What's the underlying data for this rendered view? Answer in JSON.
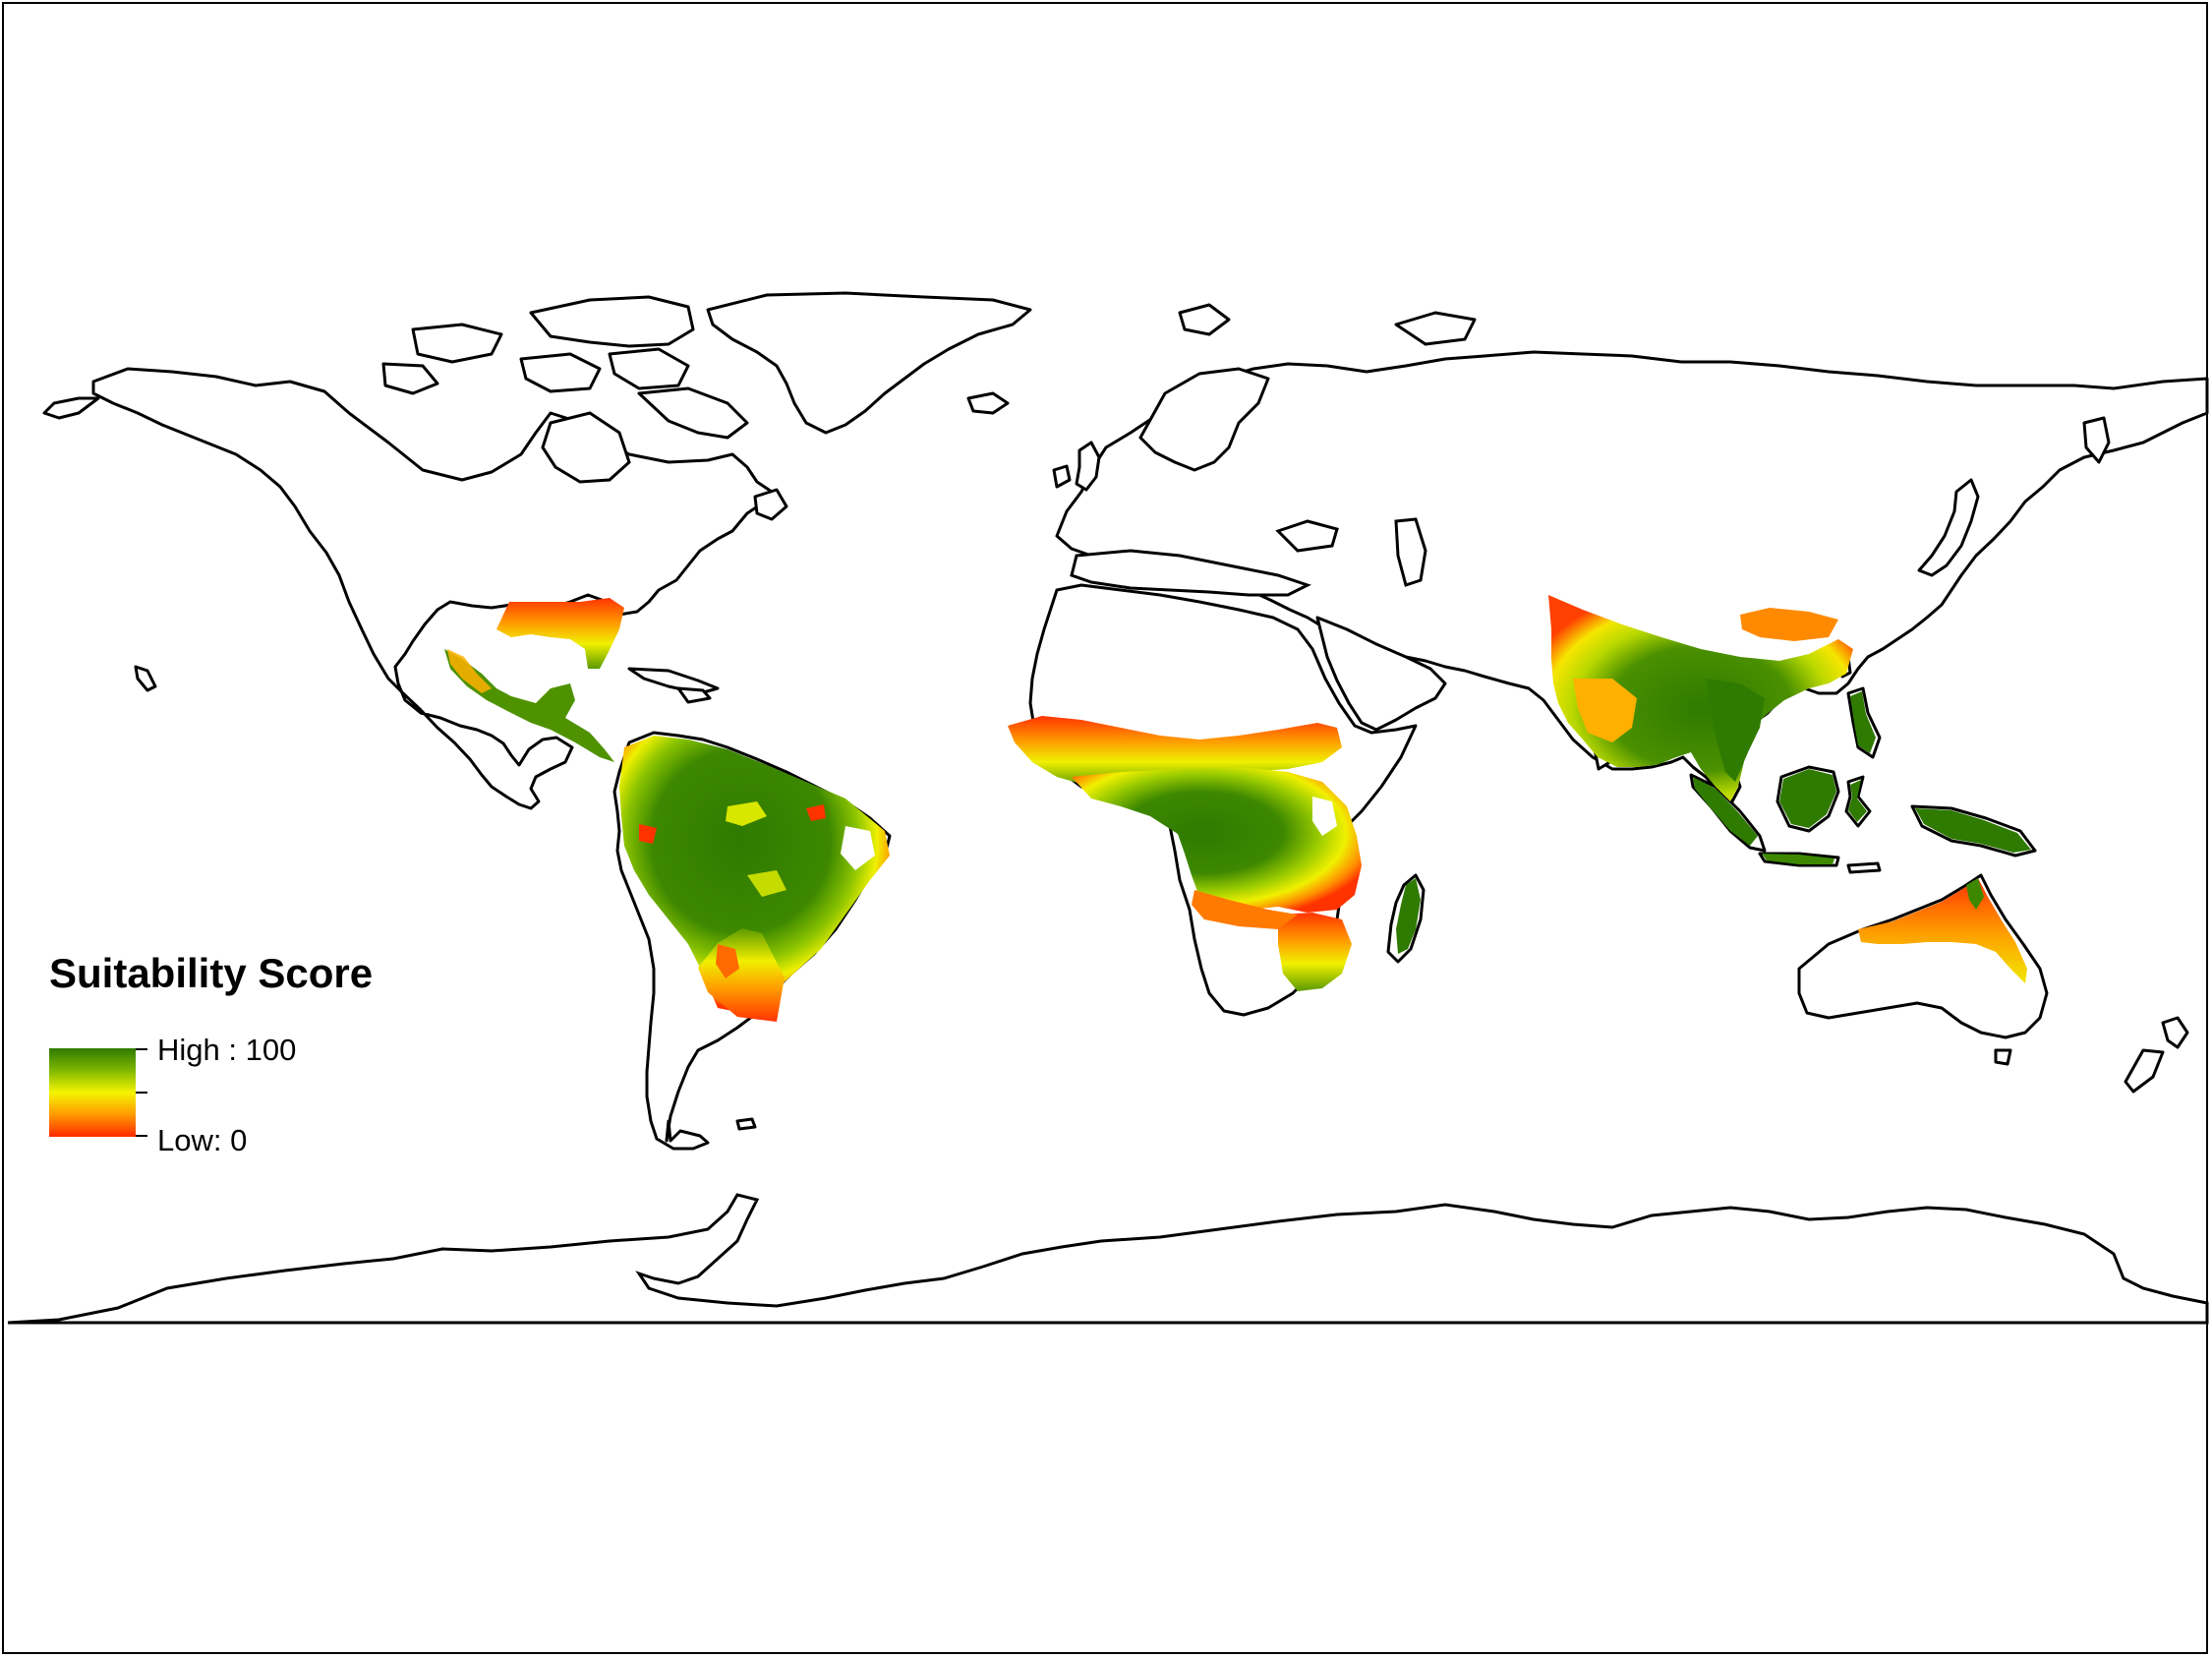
{
  "legend": {
    "title": "Suitability Score",
    "high_label": "High : 100",
    "low_label": "Low: 0",
    "ramp": {
      "high_value": 100,
      "low_value": 0,
      "stops": [
        "#2f7a00",
        "#7fb800",
        "#f4f400",
        "#ff9a00",
        "#ff2a00"
      ]
    }
  },
  "colors": {
    "land": "#ffffff",
    "coastline": "#000000",
    "high_suitability": "#2f7a00",
    "mid_suitability": "#e9ee00",
    "low_suitability": "#ff3a00"
  }
}
